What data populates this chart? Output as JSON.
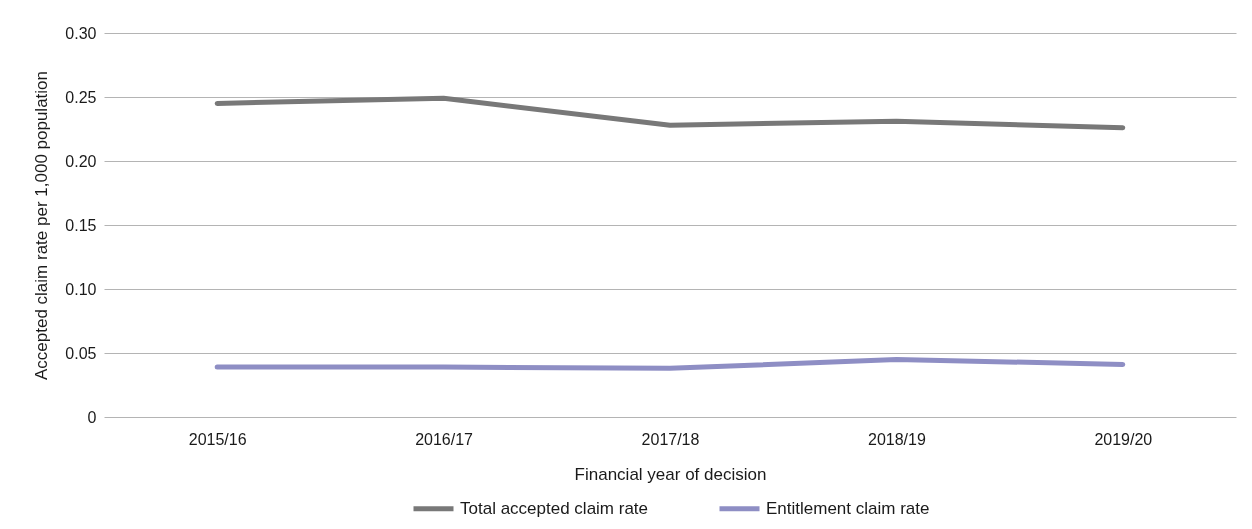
{
  "chart_data": {
    "type": "line",
    "xlabel": "Financial year of decision",
    "ylabel": "Accepted claim rate per 1,000 population",
    "categories": [
      "2015/16",
      "2016/17",
      "2017/18",
      "2018/19",
      "2019/20"
    ],
    "series": [
      {
        "name": "Total accepted claim rate",
        "color": "#787878",
        "values": [
          0.245,
          0.249,
          0.228,
          0.231,
          0.226
        ]
      },
      {
        "name": "Entitlement claim rate",
        "color": "#8e8ec4",
        "values": [
          0.039,
          0.039,
          0.038,
          0.045,
          0.041
        ]
      }
    ],
    "ylim": [
      0,
      0.3
    ],
    "yticks": [
      0,
      0.05,
      {
        "value": 0.1,
        "label": "0.10"
      },
      0.15,
      {
        "value": 0.2,
        "label": "0.20"
      },
      0.25,
      {
        "value": 0.3,
        "label": "0.30"
      }
    ],
    "grid": "y",
    "legend": "bottom"
  }
}
